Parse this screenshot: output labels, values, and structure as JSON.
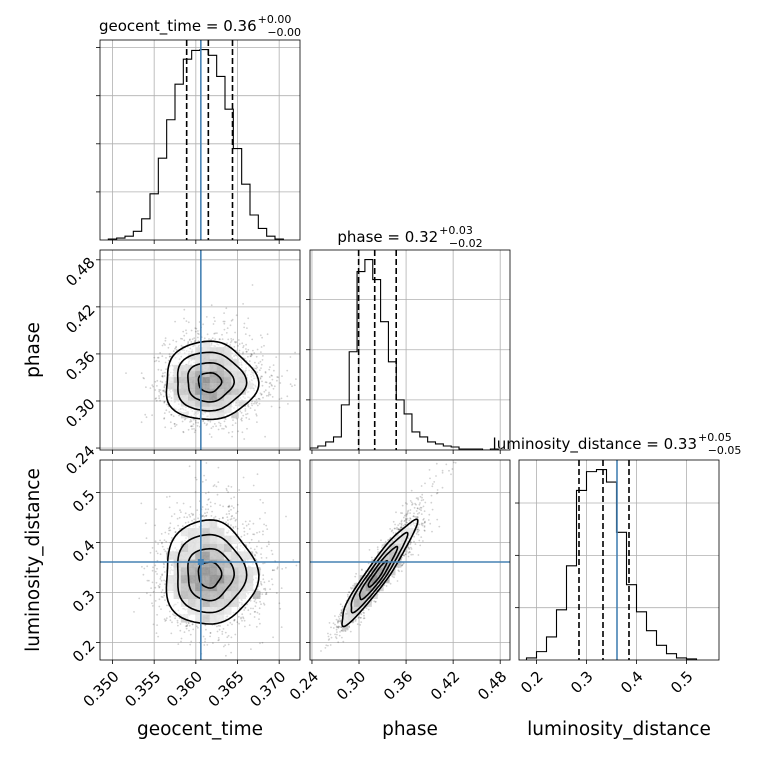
{
  "chart_data": {
    "type": "corner",
    "parameters": [
      {
        "name": "geocent_time",
        "range": [
          0.3485,
          0.3725
        ],
        "ticks": [
          0.35,
          0.355,
          0.36,
          0.365,
          0.37
        ],
        "tick_labels": [
          "0.350",
          "0.355",
          "0.360",
          "0.365",
          "0.370"
        ],
        "median": 0.36,
        "quantiles": [
          0.3589,
          0.3615,
          0.3644
        ],
        "truth": 0.3606,
        "title_main": "geocent_time = 0.36",
        "title_sup": "+0.00",
        "title_sub": "−0.00",
        "hist": {
          "edges": [
            0.3495,
            0.3505,
            0.3515,
            0.3525,
            0.3535,
            0.3545,
            0.3555,
            0.3565,
            0.3575,
            0.3585,
            0.3595,
            0.3605,
            0.3615,
            0.3625,
            0.3635,
            0.3645,
            0.3655,
            0.3665,
            0.3675,
            0.3685,
            0.3695,
            0.3705
          ],
          "counts": [
            1,
            2,
            4,
            9,
            22,
            48,
            85,
            125,
            162,
            188,
            197,
            198,
            192,
            170,
            136,
            95,
            58,
            26,
            12,
            4,
            1
          ]
        }
      },
      {
        "name": "phase",
        "range": [
          0.2375,
          0.4925
        ],
        "ticks": [
          0.24,
          0.3,
          0.36,
          0.42,
          0.48
        ],
        "tick_labels": [
          "0.24",
          "0.30",
          "0.36",
          "0.42",
          "0.48"
        ],
        "median": 0.32,
        "quantiles": [
          0.2995,
          0.32,
          0.3474
        ],
        "truth": null,
        "title_main": "phase = 0.32",
        "title_sup": "+0.03",
        "title_sub": "−0.02",
        "hist": {
          "edges": [
            0.2375,
            0.2475,
            0.2575,
            0.2675,
            0.2775,
            0.2875,
            0.2975,
            0.3075,
            0.3175,
            0.3275,
            0.3375,
            0.3475,
            0.3575,
            0.3675,
            0.3775,
            0.3875,
            0.3975,
            0.4075,
            0.4175,
            0.4275,
            0.4375,
            0.4475,
            0.4575,
            0.4675,
            0.4775,
            0.4875
          ],
          "counts": [
            2,
            4,
            8,
            13,
            45,
            98,
            178,
            190,
            170,
            128,
            88,
            50,
            36,
            18,
            13,
            8,
            6,
            4,
            3,
            1,
            1,
            1,
            0,
            1,
            0
          ]
        }
      },
      {
        "name": "luminosity_distance",
        "range": [
          0.165,
          0.565
        ],
        "ticks": [
          0.2,
          0.3,
          0.4,
          0.5
        ],
        "tick_labels": [
          "0.2",
          "0.3",
          "0.4",
          "0.5"
        ],
        "median": 0.33,
        "quantiles": [
          0.285,
          0.333,
          0.385
        ],
        "truth": 0.361,
        "title_main": "luminosity_distance = 0.33",
        "title_sup": "+0.05",
        "title_sub": "−0.05",
        "hist": {
          "edges": [
            0.18,
            0.2,
            0.22,
            0.24,
            0.26,
            0.28,
            0.3,
            0.32,
            0.34,
            0.36,
            0.38,
            0.4,
            0.42,
            0.44,
            0.46,
            0.48,
            0.5,
            0.52
          ],
          "counts": [
            2,
            8,
            22,
            48,
            90,
            162,
            180,
            182,
            170,
            122,
            72,
            46,
            28,
            14,
            6,
            2,
            1
          ]
        }
      }
    ],
    "y_tick_labels": {
      "phase": [
        "0.24",
        "0.30",
        "0.36",
        "0.42",
        "0.48"
      ],
      "luminosity_distance": [
        "0.2",
        "0.3",
        "0.4",
        "0.5"
      ]
    },
    "grid": true,
    "contour_levels": [
      0.39,
      0.86,
      0.99
    ],
    "correlations": [
      {
        "x": "geocent_time",
        "y": "phase",
        "rho": 0.0
      },
      {
        "x": "geocent_time",
        "y": "luminosity_distance",
        "rho": 0.0
      },
      {
        "x": "phase",
        "y": "luminosity_distance",
        "rho": 0.94
      }
    ],
    "colors": {
      "hist": "#000000",
      "truth": "#4682b4",
      "quantile": "#000000",
      "grid": "#b0b0b0"
    }
  }
}
